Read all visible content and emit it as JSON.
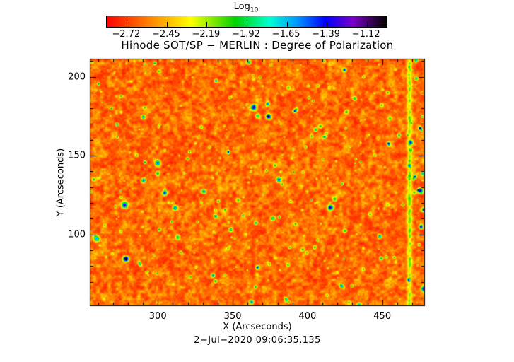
{
  "colorbar": {
    "title_main": "Log",
    "title_sub": "10",
    "ticks": [
      "−2.72",
      "−2.45",
      "−2.19",
      "−1.92",
      "−1.65",
      "−1.39",
      "−1.12"
    ]
  },
  "chart_data": {
    "type": "heatmap",
    "title": "Hinode SOT/SP − MERLIN : Degree of Polarization",
    "xlabel": "X (Arcseconds)",
    "ylabel": "Y (Arcseconds)",
    "caption": "2−Jul−2020 09:06:35.135",
    "x_ticks": [
      300,
      350,
      400,
      450
    ],
    "y_ticks": [
      100,
      150,
      200
    ],
    "xlim": [
      255,
      478
    ],
    "ylim": [
      55,
      211
    ],
    "colorbar_scale": "Log10",
    "colorbar_tick_values": [
      -2.72,
      -2.45,
      -2.19,
      -1.92,
      -1.65,
      -1.39,
      -1.12
    ],
    "value_range_log10": [
      -2.72,
      -1.12
    ],
    "dominant_color": "#f06010",
    "bright_stripe_x_arcsec": 468,
    "colormap_stops": [
      {
        "t": 0.0,
        "color": "#ff0000"
      },
      {
        "t": 0.14,
        "color": "#ff7800"
      },
      {
        "t": 0.3,
        "color": "#ffff00"
      },
      {
        "t": 0.46,
        "color": "#00d200"
      },
      {
        "t": 0.58,
        "color": "#00ffd2"
      },
      {
        "t": 0.68,
        "color": "#0096ff"
      },
      {
        "t": 0.78,
        "color": "#0000ff"
      },
      {
        "t": 0.88,
        "color": "#7800c8"
      },
      {
        "t": 0.97,
        "color": "#1e0028"
      },
      {
        "t": 1.0,
        "color": "#000000"
      }
    ]
  }
}
